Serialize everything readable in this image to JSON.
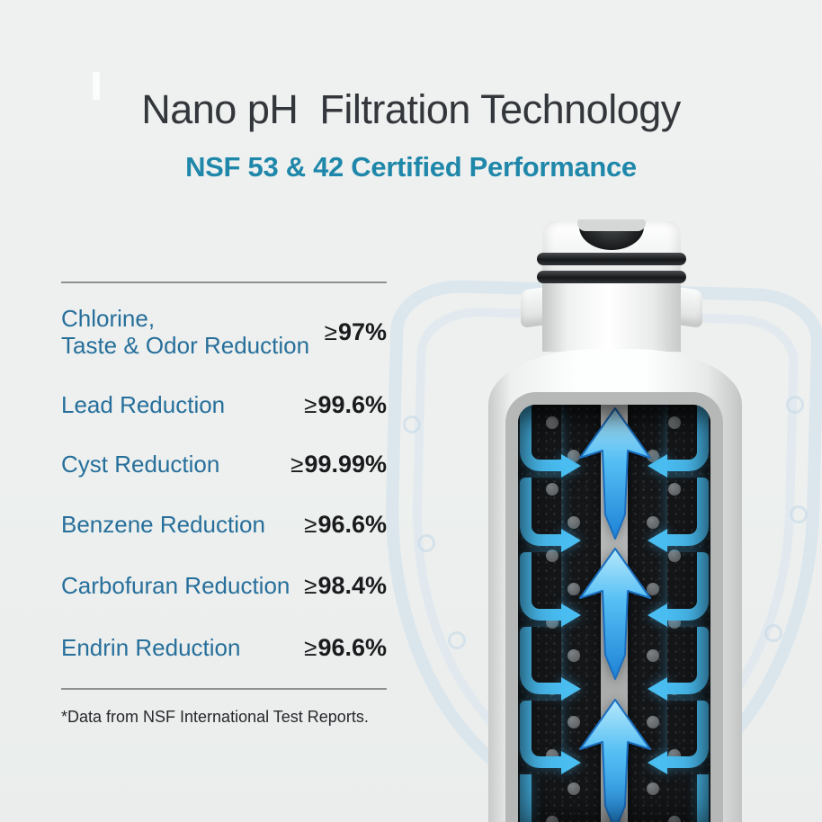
{
  "header": {
    "title": "Nano pH  Filtration Technology",
    "subtitle": "NSF 53 & 42 Certified Performance"
  },
  "performance": {
    "rows": [
      {
        "label_lines": [
          "Chlorine,",
          "Taste & Odor Reduction"
        ],
        "operator": "≥",
        "value": "97%"
      },
      {
        "label_lines": [
          "Lead Reduction"
        ],
        "operator": "≥",
        "value": "99.6%"
      },
      {
        "label_lines": [
          "Cyst Reduction"
        ],
        "operator": "≥",
        "value": "99.99%"
      },
      {
        "label_lines": [
          "Benzene Reduction"
        ],
        "operator": "≥",
        "value": "96.6%"
      },
      {
        "label_lines": [
          "Carbofuran Reduction"
        ],
        "operator": "≥",
        "value": "98.4%"
      },
      {
        "label_lines": [
          "Endrin Reduction"
        ],
        "operator": "≥",
        "value": "96.6%"
      }
    ],
    "footnote": "*Data from NSF International Test Reports."
  },
  "chart_data": {
    "type": "table",
    "title": "NSF 53 & 42 Certified Performance",
    "categories": [
      "Chlorine, Taste & Odor Reduction",
      "Lead Reduction",
      "Cyst Reduction",
      "Benzene Reduction",
      "Carbofuran Reduction",
      "Endrin Reduction"
    ],
    "values": [
      97,
      99.6,
      99.99,
      96.6,
      98.4,
      96.6
    ],
    "value_labels": [
      "≥97%",
      "≥99.6%",
      "≥99.99%",
      "≥96.6%",
      "≥98.4%",
      "≥96.6%"
    ],
    "footnote": "*Data from NSF International Test Reports."
  },
  "illustration": {
    "subject": "water-filter-cartridge-cutaway",
    "flow_direction_center": "up",
    "flow_direction_sides": "inward"
  },
  "colors": {
    "background": "#edf0ef",
    "title_text": "#33363a",
    "subtitle_teal": "#1f87a9",
    "label_blue": "#276f9b",
    "value_black": "#1a1b1d",
    "rule_gray": "#8e9190",
    "flow_blue": "#4abdf1",
    "arrow_blue_light": "#b6e8fb",
    "arrow_blue_dark": "#1e82d6",
    "oring_black": "#17191b",
    "carbon_black": "#141618",
    "channel_gray": "#b0b3b2"
  }
}
